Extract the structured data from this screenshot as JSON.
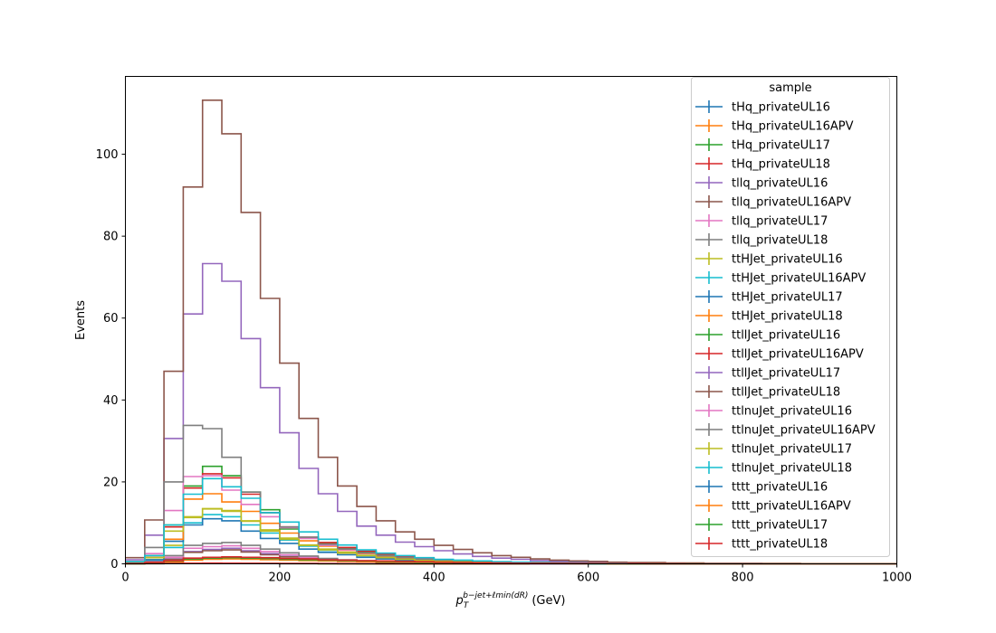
{
  "chart_data": {
    "type": "histogram-step",
    "xlabel": {
      "main": "p",
      "sub": "T",
      "sup": "b−jet+ℓmin(dR)",
      "unit": "(GeV)"
    },
    "ylabel": "Events",
    "xlim": [
      0,
      1000
    ],
    "ylim": [
      0,
      119
    ],
    "x_ticks": [
      0,
      200,
      400,
      600,
      800,
      1000
    ],
    "y_ticks": [
      0,
      20,
      40,
      60,
      80,
      100
    ],
    "bin_width": 25,
    "legend_title": "sample",
    "legend_position": "top-right",
    "series": [
      {
        "name": "tHq_privateUL16",
        "color": "#1f77b4",
        "values": [
          0.02,
          0.04,
          0.06,
          0.08,
          0.09,
          0.08,
          0.07,
          0.06,
          0.05,
          0.04,
          0.03,
          0.03,
          0.02,
          0.02,
          0.01,
          0.01,
          0.01,
          0.01,
          0.01,
          0,
          0,
          0,
          0,
          0,
          0,
          0,
          0,
          0,
          0,
          0,
          0,
          0,
          0,
          0,
          0,
          0,
          0,
          0,
          0,
          0
        ]
      },
      {
        "name": "tHq_privateUL16APV",
        "color": "#ff7f0e",
        "values": [
          0.02,
          0.04,
          0.06,
          0.08,
          0.09,
          0.08,
          0.07,
          0.06,
          0.05,
          0.04,
          0.03,
          0.03,
          0.02,
          0.02,
          0.01,
          0.01,
          0.01,
          0.01,
          0.01,
          0,
          0,
          0,
          0,
          0,
          0,
          0,
          0,
          0,
          0,
          0,
          0,
          0,
          0,
          0,
          0,
          0,
          0,
          0,
          0,
          0
        ]
      },
      {
        "name": "tHq_privateUL17",
        "color": "#2ca02c",
        "values": [
          0.03,
          0.06,
          0.09,
          0.11,
          0.12,
          0.11,
          0.1,
          0.08,
          0.07,
          0.06,
          0.05,
          0.04,
          0.03,
          0.02,
          0.02,
          0.02,
          0.01,
          0.01,
          0.01,
          0.01,
          0,
          0,
          0,
          0,
          0,
          0,
          0,
          0,
          0,
          0,
          0,
          0,
          0,
          0,
          0,
          0,
          0,
          0,
          0,
          0
        ]
      },
      {
        "name": "tHq_privateUL18",
        "color": "#d62728",
        "values": [
          0.04,
          0.08,
          0.12,
          0.15,
          0.17,
          0.16,
          0.14,
          0.12,
          0.1,
          0.08,
          0.06,
          0.05,
          0.04,
          0.03,
          0.02,
          0.02,
          0.02,
          0.01,
          0.01,
          0.01,
          0,
          0,
          0,
          0,
          0,
          0,
          0,
          0,
          0,
          0,
          0,
          0,
          0,
          0,
          0,
          0,
          0,
          0,
          0,
          0
        ]
      },
      {
        "name": "tllq_privateUL16",
        "color": "#9467bd",
        "values": [
          0.2,
          0.6,
          1.2,
          3.0,
          3.5,
          3.8,
          3.2,
          2.5,
          1.8,
          1.3,
          0.9,
          0.7,
          0.5,
          0.4,
          0.3,
          0.2,
          0.2,
          0.1,
          0.1,
          0.1,
          0.1,
          0,
          0,
          0,
          0,
          0,
          0,
          0,
          0,
          0,
          0,
          0,
          0,
          0,
          0,
          0,
          0,
          0,
          0,
          0
        ]
      },
      {
        "name": "tllq_privateUL16APV",
        "color": "#8c564b",
        "values": [
          0.2,
          0.5,
          1.1,
          2.8,
          3.2,
          3.4,
          2.9,
          2.2,
          1.7,
          1.2,
          0.8,
          0.6,
          0.5,
          0.4,
          0.3,
          0.2,
          0.2,
          0.1,
          0.1,
          0.1,
          0.1,
          0,
          0,
          0,
          0,
          0,
          0,
          0,
          0,
          0,
          0,
          0,
          0,
          0,
          0,
          0,
          0,
          0,
          0,
          0
        ]
      },
      {
        "name": "tllq_privateUL17",
        "color": "#e377c2",
        "values": [
          0.3,
          0.8,
          1.6,
          3.8,
          4.2,
          4.4,
          3.8,
          3.0,
          2.2,
          1.6,
          1.1,
          0.8,
          0.6,
          0.5,
          0.4,
          0.3,
          0.2,
          0.2,
          0.1,
          0.1,
          0.1,
          0,
          0,
          0,
          0,
          0,
          0,
          0,
          0,
          0,
          0,
          0,
          0,
          0,
          0,
          0,
          0,
          0,
          0,
          0
        ]
      },
      {
        "name": "tllq_privateUL18",
        "color": "#7f7f7f",
        "values": [
          0.4,
          1.0,
          2.0,
          4.5,
          5.0,
          5.2,
          4.5,
          3.6,
          2.7,
          1.9,
          1.3,
          1.0,
          0.7,
          0.6,
          0.5,
          0.4,
          0.3,
          0.2,
          0.2,
          0.1,
          0.1,
          0.1,
          0,
          0,
          0,
          0,
          0,
          0,
          0,
          0,
          0,
          0,
          0,
          0,
          0,
          0,
          0,
          0,
          0,
          0
        ]
      },
      {
        "name": "ttHJet_privateUL16",
        "color": "#bcbd22",
        "values": [
          0.3,
          1.0,
          4.5,
          11.3,
          13.4,
          12.8,
          10.4,
          8.3,
          6.3,
          4.6,
          3.6,
          2.8,
          2.1,
          1.6,
          1.2,
          0.9,
          0.7,
          0.5,
          0.4,
          0.3,
          0.2,
          0.2,
          0.1,
          0.1,
          0.1,
          0,
          0,
          0,
          0,
          0,
          0,
          0,
          0,
          0,
          0,
          0,
          0,
          0,
          0,
          0
        ]
      },
      {
        "name": "ttHJet_privateUL16APV",
        "color": "#17becf",
        "values": [
          0.3,
          0.9,
          4.0,
          10.0,
          12.0,
          11.5,
          9.5,
          7.5,
          5.8,
          4.3,
          3.3,
          2.6,
          2.0,
          1.5,
          1.1,
          0.8,
          0.6,
          0.5,
          0.3,
          0.3,
          0.2,
          0.1,
          0.1,
          0.1,
          0,
          0,
          0,
          0,
          0,
          0,
          0,
          0,
          0,
          0,
          0,
          0,
          0,
          0,
          0,
          0
        ]
      },
      {
        "name": "ttHJet_privateUL17",
        "color": "#1f77b4",
        "values": [
          0.3,
          1.0,
          5.5,
          9.5,
          11.0,
          10.5,
          8.0,
          6.2,
          5.0,
          3.6,
          2.8,
          2.2,
          1.6,
          1.2,
          0.9,
          0.7,
          0.5,
          0.4,
          0.3,
          0.2,
          0.2,
          0.1,
          0.1,
          0.1,
          0,
          0,
          0,
          0,
          0,
          0,
          0,
          0,
          0,
          0,
          0,
          0,
          0,
          0,
          0,
          0
        ]
      },
      {
        "name": "ttHJet_privateUL18",
        "color": "#ff7f0e",
        "values": [
          0.4,
          1.5,
          6.0,
          15.8,
          17.1,
          15.1,
          12.8,
          9.9,
          7.5,
          5.6,
          4.3,
          3.3,
          2.5,
          1.9,
          1.4,
          1.1,
          0.8,
          0.6,
          0.5,
          0.4,
          0.3,
          0.2,
          0.2,
          0.1,
          0.1,
          0.1,
          0,
          0,
          0,
          0,
          0,
          0,
          0,
          0,
          0,
          0,
          0,
          0,
          0,
          0
        ]
      },
      {
        "name": "ttllJet_privateUL16",
        "color": "#2ca02c",
        "values": [
          0.5,
          2.0,
          9.5,
          19.0,
          23.8,
          21.5,
          17.5,
          13.2,
          8.5,
          6.3,
          5.0,
          3.9,
          3.0,
          2.3,
          1.7,
          1.3,
          1.0,
          0.7,
          0.6,
          0.4,
          0.3,
          0.3,
          0.2,
          0.1,
          0.1,
          0.1,
          0,
          0,
          0,
          0,
          0,
          0,
          0,
          0,
          0,
          0,
          0,
          0,
          0,
          0
        ]
      },
      {
        "name": "ttllJet_privateUL16APV",
        "color": "#d62728",
        "values": [
          0.5,
          2.0,
          9.0,
          18.5,
          22.0,
          21.0,
          17.0,
          12.5,
          9.0,
          6.5,
          5.2,
          4.0,
          3.1,
          2.4,
          1.8,
          1.4,
          1.0,
          0.8,
          0.6,
          0.4,
          0.3,
          0.3,
          0.2,
          0.1,
          0.1,
          0.1,
          0,
          0,
          0,
          0,
          0,
          0,
          0,
          0,
          0,
          0,
          0,
          0,
          0,
          0
        ]
      },
      {
        "name": "ttllJet_privateUL17",
        "color": "#9467bd",
        "values": [
          1.0,
          7.0,
          30.6,
          61.0,
          73.3,
          69.0,
          55.0,
          43.0,
          32.0,
          23.3,
          17.1,
          12.8,
          9.2,
          7.0,
          5.3,
          4.2,
          3.2,
          2.4,
          1.8,
          1.4,
          1.1,
          0.8,
          0.6,
          0.5,
          0.4,
          0.3,
          0.2,
          0.2,
          0.1,
          0.1,
          0.1,
          0.1,
          0.1,
          0,
          0,
          0,
          0,
          0,
          0,
          0
        ]
      },
      {
        "name": "ttllJet_privateUL18",
        "color": "#8c564b",
        "values": [
          1.5,
          10.7,
          47.0,
          92.0,
          113.2,
          105.0,
          85.8,
          64.8,
          49.0,
          35.5,
          26.0,
          19.0,
          14.0,
          10.5,
          7.8,
          6.0,
          4.5,
          3.5,
          2.7,
          2.0,
          1.6,
          1.2,
          0.9,
          0.7,
          0.6,
          0.4,
          0.3,
          0.3,
          0.2,
          0.2,
          0.1,
          0.1,
          0.1,
          0.1,
          0.1,
          0,
          0,
          0,
          0,
          0
        ]
      },
      {
        "name": "ttlnuJet_privateUL16",
        "color": "#e377c2",
        "values": [
          0.4,
          2.5,
          13.0,
          21.3,
          21.5,
          18.0,
          14.5,
          11.5,
          8.8,
          6.2,
          4.5,
          3.4,
          2.6,
          2.0,
          1.5,
          1.1,
          0.9,
          0.7,
          0.5,
          0.4,
          0.3,
          0.2,
          0.2,
          0.1,
          0.1,
          0.1,
          0,
          0,
          0,
          0,
          0,
          0,
          0,
          0,
          0,
          0,
          0,
          0,
          0,
          0
        ]
      },
      {
        "name": "ttlnuJet_privateUL16APV",
        "color": "#7f7f7f",
        "values": [
          0.5,
          4.0,
          20.0,
          33.8,
          33.0,
          26.0,
          17.5,
          12.5,
          9.0,
          6.5,
          4.8,
          3.6,
          2.7,
          2.0,
          1.5,
          1.1,
          0.9,
          0.7,
          0.5,
          0.4,
          0.3,
          0.2,
          0.2,
          0.1,
          0.1,
          0.1,
          0,
          0,
          0,
          0,
          0,
          0,
          0,
          0,
          0,
          0,
          0,
          0,
          0,
          0
        ]
      },
      {
        "name": "ttlnuJet_privateUL17",
        "color": "#bcbd22",
        "values": [
          0.3,
          1.5,
          8.0,
          11.5,
          13.5,
          13.0,
          10.5,
          8.0,
          6.0,
          4.5,
          3.4,
          2.6,
          2.0,
          1.5,
          1.1,
          0.8,
          0.6,
          0.5,
          0.4,
          0.3,
          0.2,
          0.2,
          0.1,
          0.1,
          0.1,
          0,
          0,
          0,
          0,
          0,
          0,
          0,
          0,
          0,
          0,
          0,
          0,
          0,
          0,
          0
        ]
      },
      {
        "name": "ttlnuJet_privateUL18",
        "color": "#17becf",
        "values": [
          0.5,
          2.0,
          9.5,
          17.0,
          20.8,
          18.8,
          16.0,
          12.5,
          10.2,
          7.8,
          6.0,
          4.6,
          3.4,
          2.6,
          2.0,
          1.5,
          1.1,
          0.9,
          0.7,
          0.5,
          0.4,
          0.3,
          0.2,
          0.2,
          0.1,
          0.1,
          0,
          0,
          0,
          0,
          0,
          0,
          0,
          0,
          0,
          0,
          0,
          0,
          0,
          0
        ]
      },
      {
        "name": "tttt_privateUL16",
        "color": "#1f77b4",
        "values": [
          0.05,
          0.2,
          0.6,
          1.0,
          1.2,
          1.3,
          1.2,
          1.1,
          1.0,
          0.9,
          0.8,
          0.7,
          0.6,
          0.5,
          0.4,
          0.35,
          0.3,
          0.25,
          0.2,
          0.15,
          0.12,
          0.1,
          0.08,
          0.06,
          0.05,
          0.04,
          0.03,
          0.02,
          0.02,
          0.01,
          0,
          0,
          0,
          0,
          0,
          0,
          0,
          0,
          0,
          0
        ]
      },
      {
        "name": "tttt_privateUL16APV",
        "color": "#ff7f0e",
        "values": [
          0.05,
          0.2,
          0.5,
          0.9,
          1.1,
          1.2,
          1.1,
          1.0,
          0.9,
          0.8,
          0.7,
          0.6,
          0.5,
          0.45,
          0.4,
          0.3,
          0.25,
          0.2,
          0.18,
          0.14,
          0.1,
          0.08,
          0.07,
          0.05,
          0.04,
          0.03,
          0.02,
          0.02,
          0.01,
          0.01,
          0,
          0,
          0,
          0,
          0,
          0,
          0,
          0,
          0,
          0
        ]
      },
      {
        "name": "tttt_privateUL17",
        "color": "#2ca02c",
        "values": [
          0.06,
          0.25,
          0.7,
          1.2,
          1.4,
          1.5,
          1.4,
          1.3,
          1.1,
          1.0,
          0.9,
          0.8,
          0.7,
          0.6,
          0.5,
          0.4,
          0.35,
          0.3,
          0.22,
          0.18,
          0.14,
          0.11,
          0.09,
          0.07,
          0.05,
          0.04,
          0.03,
          0.02,
          0.02,
          0.01,
          0,
          0,
          0,
          0,
          0,
          0,
          0,
          0,
          0,
          0
        ]
      },
      {
        "name": "tttt_privateUL18",
        "color": "#d62728",
        "values": [
          0.08,
          0.3,
          0.8,
          1.4,
          1.6,
          1.7,
          1.6,
          1.5,
          1.3,
          1.2,
          1.0,
          0.9,
          0.8,
          0.7,
          0.6,
          0.5,
          0.4,
          0.33,
          0.26,
          0.2,
          0.16,
          0.13,
          0.1,
          0.08,
          0.06,
          0.05,
          0.04,
          0.03,
          0.02,
          0.01,
          0,
          0,
          0,
          0,
          0,
          0,
          0,
          0,
          0,
          0
        ]
      }
    ]
  }
}
